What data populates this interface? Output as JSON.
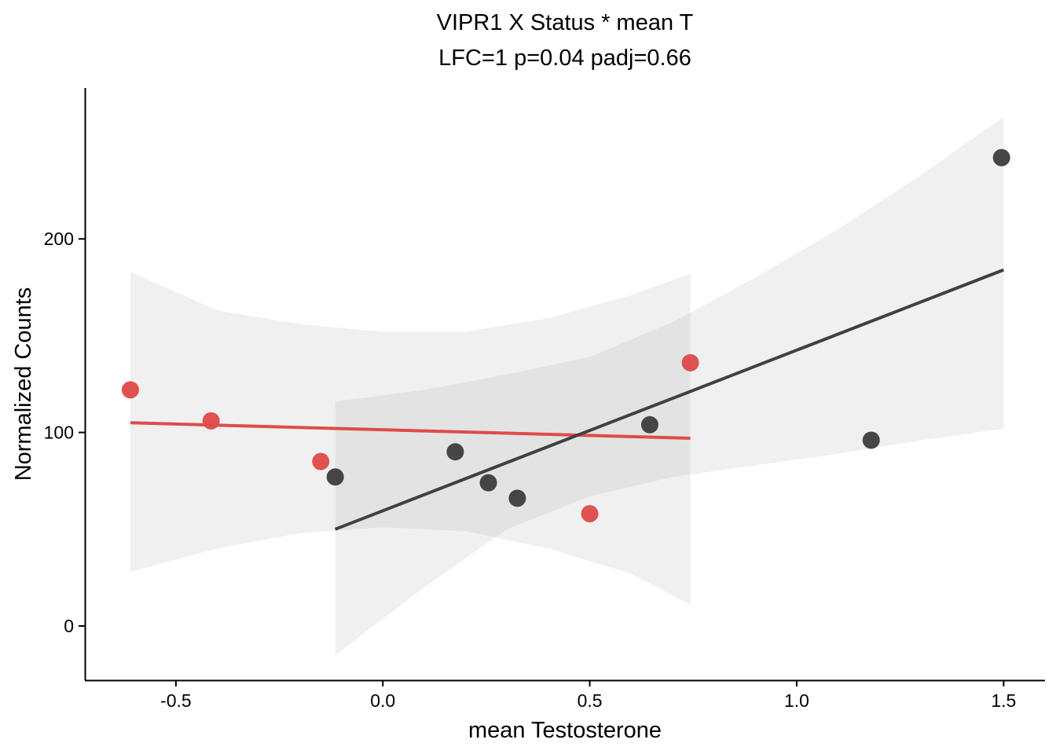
{
  "chart_data": {
    "type": "scatter",
    "title": "VIPR1 X Status * mean T",
    "subtitle": "LFC=1 p=0.04 padj=0.66",
    "xlabel": "mean Testosterone",
    "ylabel": "Normalized Counts",
    "xlim": [
      -0.72,
      1.6
    ],
    "ylim": [
      -28,
      278
    ],
    "x_ticks": [
      {
        "value": -0.5,
        "label": "-0.5"
      },
      {
        "value": 0.0,
        "label": "0.0"
      },
      {
        "value": 0.5,
        "label": "0.5"
      },
      {
        "value": 1.0,
        "label": "1.0"
      },
      {
        "value": 1.5,
        "label": "1.5"
      }
    ],
    "y_ticks": [
      {
        "value": 0,
        "label": "0"
      },
      {
        "value": 100,
        "label": "100"
      },
      {
        "value": 200,
        "label": "200"
      }
    ],
    "grid": false,
    "legend": "none",
    "series": [
      {
        "color": "#df4b4b",
        "points": [
          {
            "x": -0.61,
            "y": 122
          },
          {
            "x": -0.415,
            "y": 106
          },
          {
            "x": -0.15,
            "y": 85
          },
          {
            "x": 0.5,
            "y": 58
          },
          {
            "x": 0.743,
            "y": 136
          }
        ],
        "fit": [
          {
            "x": -0.61,
            "y": 105
          },
          {
            "x": 0.743,
            "y": 97
          }
        ],
        "band": [
          {
            "x": -0.61,
            "lo": 28,
            "hi": 183
          },
          {
            "x": -0.4,
            "lo": 40,
            "hi": 163
          },
          {
            "x": -0.2,
            "lo": 48,
            "hi": 156
          },
          {
            "x": 0.0,
            "lo": 51,
            "hi": 152
          },
          {
            "x": 0.2,
            "lo": 49,
            "hi": 152
          },
          {
            "x": 0.4,
            "lo": 40,
            "hi": 159
          },
          {
            "x": 0.6,
            "lo": 27,
            "hi": 171
          },
          {
            "x": 0.743,
            "lo": 11,
            "hi": 182
          }
        ]
      },
      {
        "color": "#404040",
        "points": [
          {
            "x": -0.115,
            "y": 77
          },
          {
            "x": 0.175,
            "y": 90
          },
          {
            "x": 0.255,
            "y": 74
          },
          {
            "x": 0.325,
            "y": 66
          },
          {
            "x": 0.645,
            "y": 104
          },
          {
            "x": 1.18,
            "y": 96
          },
          {
            "x": 1.495,
            "y": 242
          }
        ],
        "fit": [
          {
            "x": -0.115,
            "y": 50
          },
          {
            "x": 1.5,
            "y": 184
          }
        ],
        "band": [
          {
            "x": -0.115,
            "lo": -15,
            "hi": 116
          },
          {
            "x": 0.1,
            "lo": 20,
            "hi": 122
          },
          {
            "x": 0.3,
            "lo": 50,
            "hi": 130
          },
          {
            "x": 0.5,
            "lo": 67,
            "hi": 139
          },
          {
            "x": 0.7,
            "lo": 77,
            "hi": 157
          },
          {
            "x": 0.9,
            "lo": 83,
            "hi": 180
          },
          {
            "x": 1.1,
            "lo": 89,
            "hi": 205
          },
          {
            "x": 1.3,
            "lo": 96,
            "hi": 233
          },
          {
            "x": 1.5,
            "lo": 102,
            "hi": 263
          }
        ]
      }
    ]
  }
}
